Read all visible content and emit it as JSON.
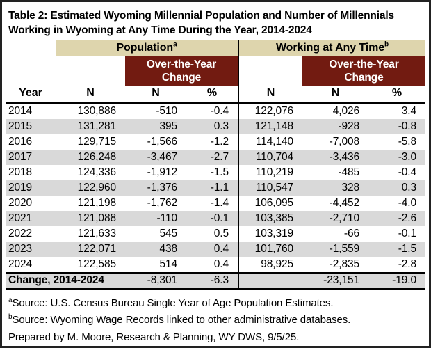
{
  "title": {
    "line1": "Table 2: Estimated Wyoming Millennial Population and Number of Millennials",
    "line2": "Working in Wyoming at Any Time During the Year, 2014-2024"
  },
  "colors": {
    "band_tan": "#ded5ad",
    "change_maroon": "#721b11",
    "row_stripe": "#d9d9d9",
    "line_black": "#000000"
  },
  "header": {
    "population": {
      "label": "Population",
      "sup": "a"
    },
    "working": {
      "label": "Working at Any Time",
      "sup": "b"
    },
    "change": {
      "line1": "Over-the-Year",
      "line2": "Change"
    },
    "columns": {
      "year": "Year",
      "n": "N",
      "pct": "%"
    }
  },
  "rows": [
    {
      "year": "2014",
      "pop_n": "130,886",
      "pop_chg_n": "-510",
      "pop_chg_pct": "-0.4",
      "work_n": "122,076",
      "work_chg_n": "4,026",
      "work_chg_pct": "3.4"
    },
    {
      "year": "2015",
      "pop_n": "131,281",
      "pop_chg_n": "395",
      "pop_chg_pct": "0.3",
      "work_n": "121,148",
      "work_chg_n": "-928",
      "work_chg_pct": "-0.8"
    },
    {
      "year": "2016",
      "pop_n": "129,715",
      "pop_chg_n": "-1,566",
      "pop_chg_pct": "-1.2",
      "work_n": "114,140",
      "work_chg_n": "-7,008",
      "work_chg_pct": "-5.8"
    },
    {
      "year": "2017",
      "pop_n": "126,248",
      "pop_chg_n": "-3,467",
      "pop_chg_pct": "-2.7",
      "work_n": "110,704",
      "work_chg_n": "-3,436",
      "work_chg_pct": "-3.0"
    },
    {
      "year": "2018",
      "pop_n": "124,336",
      "pop_chg_n": "-1,912",
      "pop_chg_pct": "-1.5",
      "work_n": "110,219",
      "work_chg_n": "-485",
      "work_chg_pct": "-0.4"
    },
    {
      "year": "2019",
      "pop_n": "122,960",
      "pop_chg_n": "-1,376",
      "pop_chg_pct": "-1.1",
      "work_n": "110,547",
      "work_chg_n": "328",
      "work_chg_pct": "0.3"
    },
    {
      "year": "2020",
      "pop_n": "121,198",
      "pop_chg_n": "-1,762",
      "pop_chg_pct": "-1.4",
      "work_n": "106,095",
      "work_chg_n": "-4,452",
      "work_chg_pct": "-4.0"
    },
    {
      "year": "2021",
      "pop_n": "121,088",
      "pop_chg_n": "-110",
      "pop_chg_pct": "-0.1",
      "work_n": "103,385",
      "work_chg_n": "-2,710",
      "work_chg_pct": "-2.6"
    },
    {
      "year": "2022",
      "pop_n": "121,633",
      "pop_chg_n": "545",
      "pop_chg_pct": "0.5",
      "work_n": "103,319",
      "work_chg_n": "-66",
      "work_chg_pct": "-0.1"
    },
    {
      "year": "2023",
      "pop_n": "122,071",
      "pop_chg_n": "438",
      "pop_chg_pct": "0.4",
      "work_n": "101,760",
      "work_chg_n": "-1,559",
      "work_chg_pct": "-1.5"
    },
    {
      "year": "2024",
      "pop_n": "122,585",
      "pop_chg_n": "514",
      "pop_chg_pct": "0.4",
      "work_n": "98,925",
      "work_chg_n": "-2,835",
      "work_chg_pct": "-2.8"
    }
  ],
  "total_row": {
    "label": "Change, 2014-2024",
    "pop_chg_n": "-8,301",
    "pop_chg_pct": "-6.3",
    "work_chg_n": "-23,151",
    "work_chg_pct": "-19.0"
  },
  "footnotes": [
    {
      "sup": "a",
      "text": "Source: U.S. Census Bureau Single Year of Age Population Estimates."
    },
    {
      "sup": "b",
      "text": "Source: Wyoming Wage Records linked to other administrative databases."
    },
    {
      "sup": "",
      "text": "Prepared by M. Moore, Research & Planning, WY DWS, 9/5/25."
    }
  ]
}
